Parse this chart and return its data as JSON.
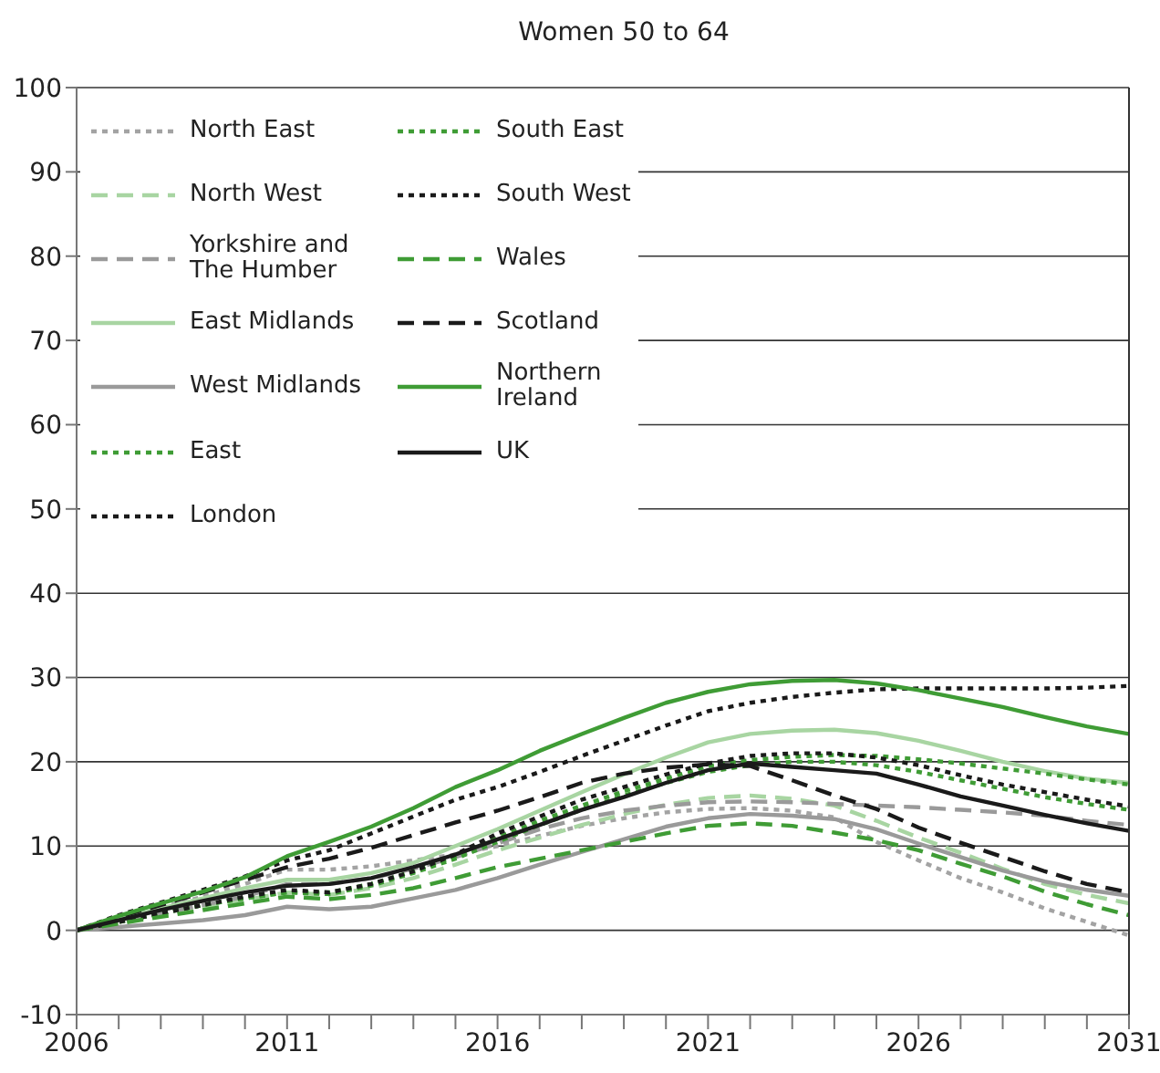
{
  "chart_data": {
    "type": "line",
    "title": "Women 50 to 64",
    "x": [
      2006,
      2007,
      2008,
      2009,
      2010,
      2011,
      2012,
      2013,
      2014,
      2015,
      2016,
      2017,
      2018,
      2019,
      2020,
      2021,
      2022,
      2023,
      2024,
      2025,
      2026,
      2027,
      2028,
      2029,
      2030,
      2031
    ],
    "xlim": [
      2006,
      2031
    ],
    "xticks": [
      2006,
      {
        "value": 2007,
        "label": null
      },
      {
        "value": 2008,
        "label": null
      },
      {
        "value": 2009,
        "label": null
      },
      {
        "value": 2010,
        "label": null
      },
      2011,
      {
        "value": 2012,
        "label": null
      },
      {
        "value": 2013,
        "label": null
      },
      {
        "value": 2014,
        "label": null
      },
      {
        "value": 2015,
        "label": null
      },
      2016,
      {
        "value": 2017,
        "label": null
      },
      {
        "value": 2018,
        "label": null
      },
      {
        "value": 2019,
        "label": null
      },
      {
        "value": 2020,
        "label": null
      },
      2021,
      {
        "value": 2022,
        "label": null
      },
      {
        "value": 2023,
        "label": null
      },
      {
        "value": 2024,
        "label": null
      },
      {
        "value": 2025,
        "label": null
      },
      2026,
      {
        "value": 2027,
        "label": null
      },
      {
        "value": 2028,
        "label": null
      },
      {
        "value": 2029,
        "label": null
      },
      {
        "value": 2030,
        "label": null
      },
      2031
    ],
    "ylim": [
      -10,
      100
    ],
    "yticks": [
      -10,
      0,
      10,
      20,
      30,
      40,
      50,
      60,
      70,
      80,
      90,
      100
    ],
    "grid": "y",
    "legend": "top left",
    "marker": "none",
    "series": [
      {
        "name": "North East",
        "color": "#a3a3a3",
        "line_style": "dotted",
        "values": [
          0,
          1.3,
          2.7,
          4,
          5.5,
          7.2,
          7.2,
          7.6,
          8.3,
          9,
          10,
          11.2,
          12.4,
          13.3,
          14,
          14.4,
          14.5,
          14.2,
          13.4,
          10.5,
          8.3,
          6.2,
          4.5,
          2.6,
          1,
          -0.6
        ]
      },
      {
        "name": "North West",
        "color": "#a8d5a2",
        "line_style": "dashed",
        "values": [
          0,
          0.9,
          1.8,
          2.7,
          3.6,
          4.5,
          4.2,
          5,
          6.2,
          7.8,
          9.5,
          11,
          12.5,
          13.8,
          14.9,
          15.7,
          16,
          15.6,
          14.8,
          13,
          11,
          9.2,
          7.3,
          5.5,
          4.2,
          3.2
        ]
      },
      {
        "name": "Yorkshire and The Humber",
        "color": "#9a9a9a",
        "line_style": "dashed",
        "values": [
          0,
          1,
          2,
          3,
          4,
          5.5,
          5.5,
          6.2,
          7.3,
          8.7,
          10.3,
          12,
          13.3,
          14.2,
          14.8,
          15.2,
          15.3,
          15.2,
          15,
          14.8,
          14.6,
          14.3,
          14,
          13.6,
          13,
          12.5
        ]
      },
      {
        "name": "East Midlands",
        "color": "#a8d5a2",
        "line_style": "solid",
        "values": [
          0,
          1.3,
          2.6,
          3.8,
          5,
          6,
          6,
          6.8,
          8,
          10,
          12,
          14.2,
          16.4,
          18.5,
          20.5,
          22.3,
          23.3,
          23.7,
          23.8,
          23.4,
          22.5,
          21.3,
          20,
          18.9,
          18,
          17.5
        ]
      },
      {
        "name": "West Midlands",
        "color": "#9a9a9a",
        "line_style": "solid",
        "values": [
          0,
          0.4,
          0.8,
          1.2,
          1.8,
          2.8,
          2.5,
          2.8,
          3.8,
          4.8,
          6.2,
          7.8,
          9.3,
          10.8,
          12.3,
          13.3,
          13.8,
          13.6,
          13.2,
          12,
          10.3,
          8.7,
          7.1,
          5.8,
          4.8,
          4.1
        ]
      },
      {
        "name": "East",
        "color": "#3f9c35",
        "line_style": "dotted",
        "values": [
          0,
          1,
          2,
          3,
          3.8,
          4.5,
          4.3,
          5.3,
          6.8,
          8.5,
          10.5,
          12.5,
          14.3,
          16,
          17.5,
          18.8,
          19.6,
          20,
          20,
          19.6,
          18.8,
          17.8,
          16.8,
          15.8,
          15,
          14.3
        ]
      },
      {
        "name": "London",
        "color": "#1a1a1a",
        "line_style": "dotted",
        "values": [
          0,
          1.8,
          3.3,
          4.8,
          6.4,
          8.3,
          9.5,
          11.5,
          13.5,
          15.5,
          17,
          18.8,
          20.7,
          22.5,
          24.3,
          26,
          27,
          27.7,
          28.2,
          28.6,
          28.7,
          28.7,
          28.7,
          28.7,
          28.8,
          29
        ]
      },
      {
        "name": "South East",
        "color": "#3f9c35",
        "line_style": "dotted",
        "values": [
          0,
          1,
          2,
          3,
          3.8,
          4.5,
          4.5,
          5.5,
          7,
          8.8,
          11,
          13,
          14.8,
          16.5,
          18,
          19.5,
          20.2,
          20.6,
          20.8,
          20.7,
          20.3,
          19.8,
          19.2,
          18.6,
          17.9,
          17.3
        ]
      },
      {
        "name": "South West",
        "color": "#1a1a1a",
        "line_style": "dotted",
        "values": [
          0,
          1,
          2,
          3,
          4,
          4.8,
          4.5,
          5.5,
          7,
          9,
          11.5,
          13.5,
          15.5,
          17,
          18.5,
          19.8,
          20.7,
          21,
          21,
          20.5,
          19.6,
          18.4,
          17.3,
          16.4,
          15.5,
          14.7
        ]
      },
      {
        "name": "Wales",
        "color": "#3f9c35",
        "line_style": "dashed",
        "values": [
          0,
          0.8,
          1.6,
          2.4,
          3.2,
          4,
          3.7,
          4.2,
          5,
          6.2,
          7.5,
          8.5,
          9.5,
          10.5,
          11.5,
          12.4,
          12.7,
          12.4,
          11.6,
          10.7,
          9.5,
          7.9,
          6.4,
          4.6,
          3.1,
          1.8
        ]
      },
      {
        "name": "Scotland",
        "color": "#1a1a1a",
        "line_style": "dashed",
        "values": [
          0,
          1.6,
          3,
          4.5,
          6,
          7.5,
          8.5,
          9.8,
          11.3,
          12.8,
          14.2,
          15.8,
          17.5,
          18.6,
          19.3,
          19.7,
          19.5,
          17.8,
          16,
          14.4,
          12.2,
          10.4,
          8.7,
          7,
          5.5,
          4.5
        ]
      },
      {
        "name": "Northern Ireland",
        "color": "#3f9c35",
        "line_style": "solid",
        "values": [
          0,
          1.7,
          3.2,
          4.6,
          6.3,
          8.8,
          10.5,
          12.3,
          14.5,
          17,
          19,
          21.3,
          23.3,
          25.2,
          27,
          28.3,
          29.2,
          29.6,
          29.7,
          29.3,
          28.5,
          27.5,
          26.5,
          25.3,
          24.2,
          23.3
        ]
      },
      {
        "name": "UK",
        "color": "#1a1a1a",
        "line_style": "solid",
        "values": [
          0,
          1.2,
          2.4,
          3.5,
          4.5,
          5.3,
          5.5,
          6.2,
          7.5,
          9,
          10.8,
          12.5,
          14.3,
          15.8,
          17.5,
          19,
          19.8,
          19.4,
          19,
          18.6,
          17.3,
          15.9,
          14.8,
          13.7,
          12.7,
          11.8
        ]
      }
    ]
  }
}
